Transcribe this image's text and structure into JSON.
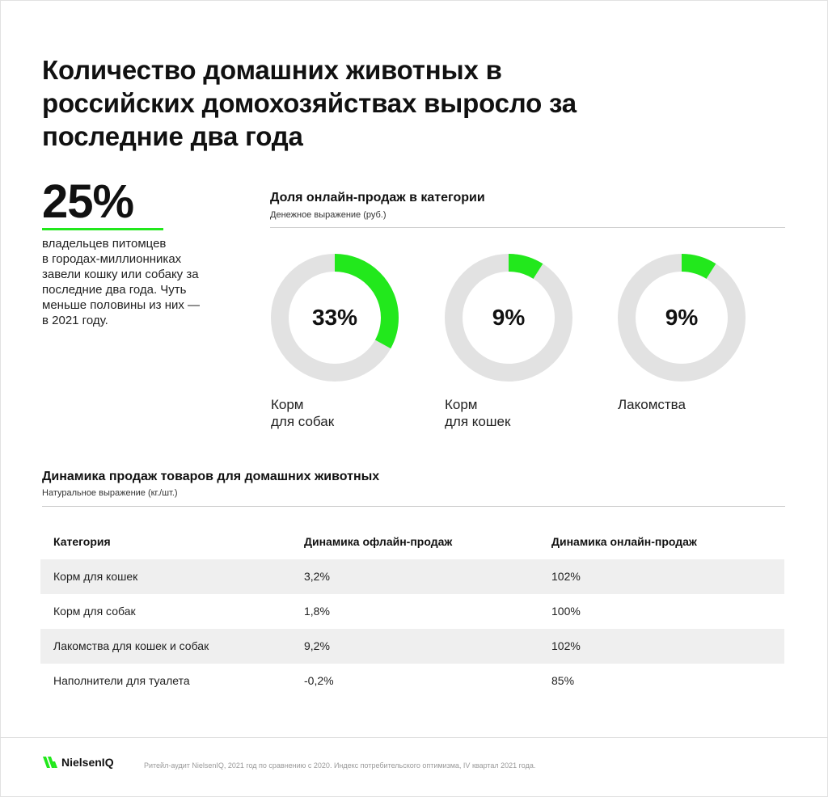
{
  "headline": [
    "Количество домашних животных в",
    "российских домохозяйствах выросло за",
    "последние два года"
  ],
  "stat": {
    "value": "25%",
    "text": "владельцев питомцев\nв городах-миллионниках\nзавели кошку или собаку за\nпоследние два года. Чуть\nменьше половины из них —\nв 2021 году."
  },
  "donuts_section": {
    "title": "Доля онлайн-продаж в категории",
    "subtitle": "Денежное выражение (руб.)"
  },
  "colors": {
    "accent": "#22e81c",
    "track": "#e2e2e2",
    "row_shade": "#efefef"
  },
  "chart_data": {
    "type": "pie",
    "style": "donut",
    "items": [
      {
        "label": "Корм\nдля собак",
        "value": 33,
        "display": "33%"
      },
      {
        "label": "Корм\nдля кошек",
        "value": 9,
        "display": "9%"
      },
      {
        "label": "Лакомства",
        "value": 9,
        "display": "9%"
      }
    ]
  },
  "table_section": {
    "title": "Динамика продаж товаров для домашних животных",
    "subtitle": "Натуральное выражение (кг./шт.)",
    "headers": [
      "Категория",
      "Динамика офлайн-продаж",
      "Динамика онлайн-продаж"
    ],
    "rows": [
      [
        "Корм для кошек",
        "3,2%",
        "102%"
      ],
      [
        "Корм для собак",
        "1,8%",
        "100%"
      ],
      [
        "Лакомства для кошек и собак",
        "9,2%",
        "102%"
      ],
      [
        "Наполнители для туалета",
        "-0,2%",
        "85%"
      ]
    ]
  },
  "footer": {
    "logo_text": "NielsenIQ",
    "logo_icon": "nielseniq-mark-icon",
    "note": "Ритейл-аудит NielsenIQ, 2021 год по сравнению с 2020. Индекс потребительского оптимизма, IV квартал 2021 года."
  }
}
